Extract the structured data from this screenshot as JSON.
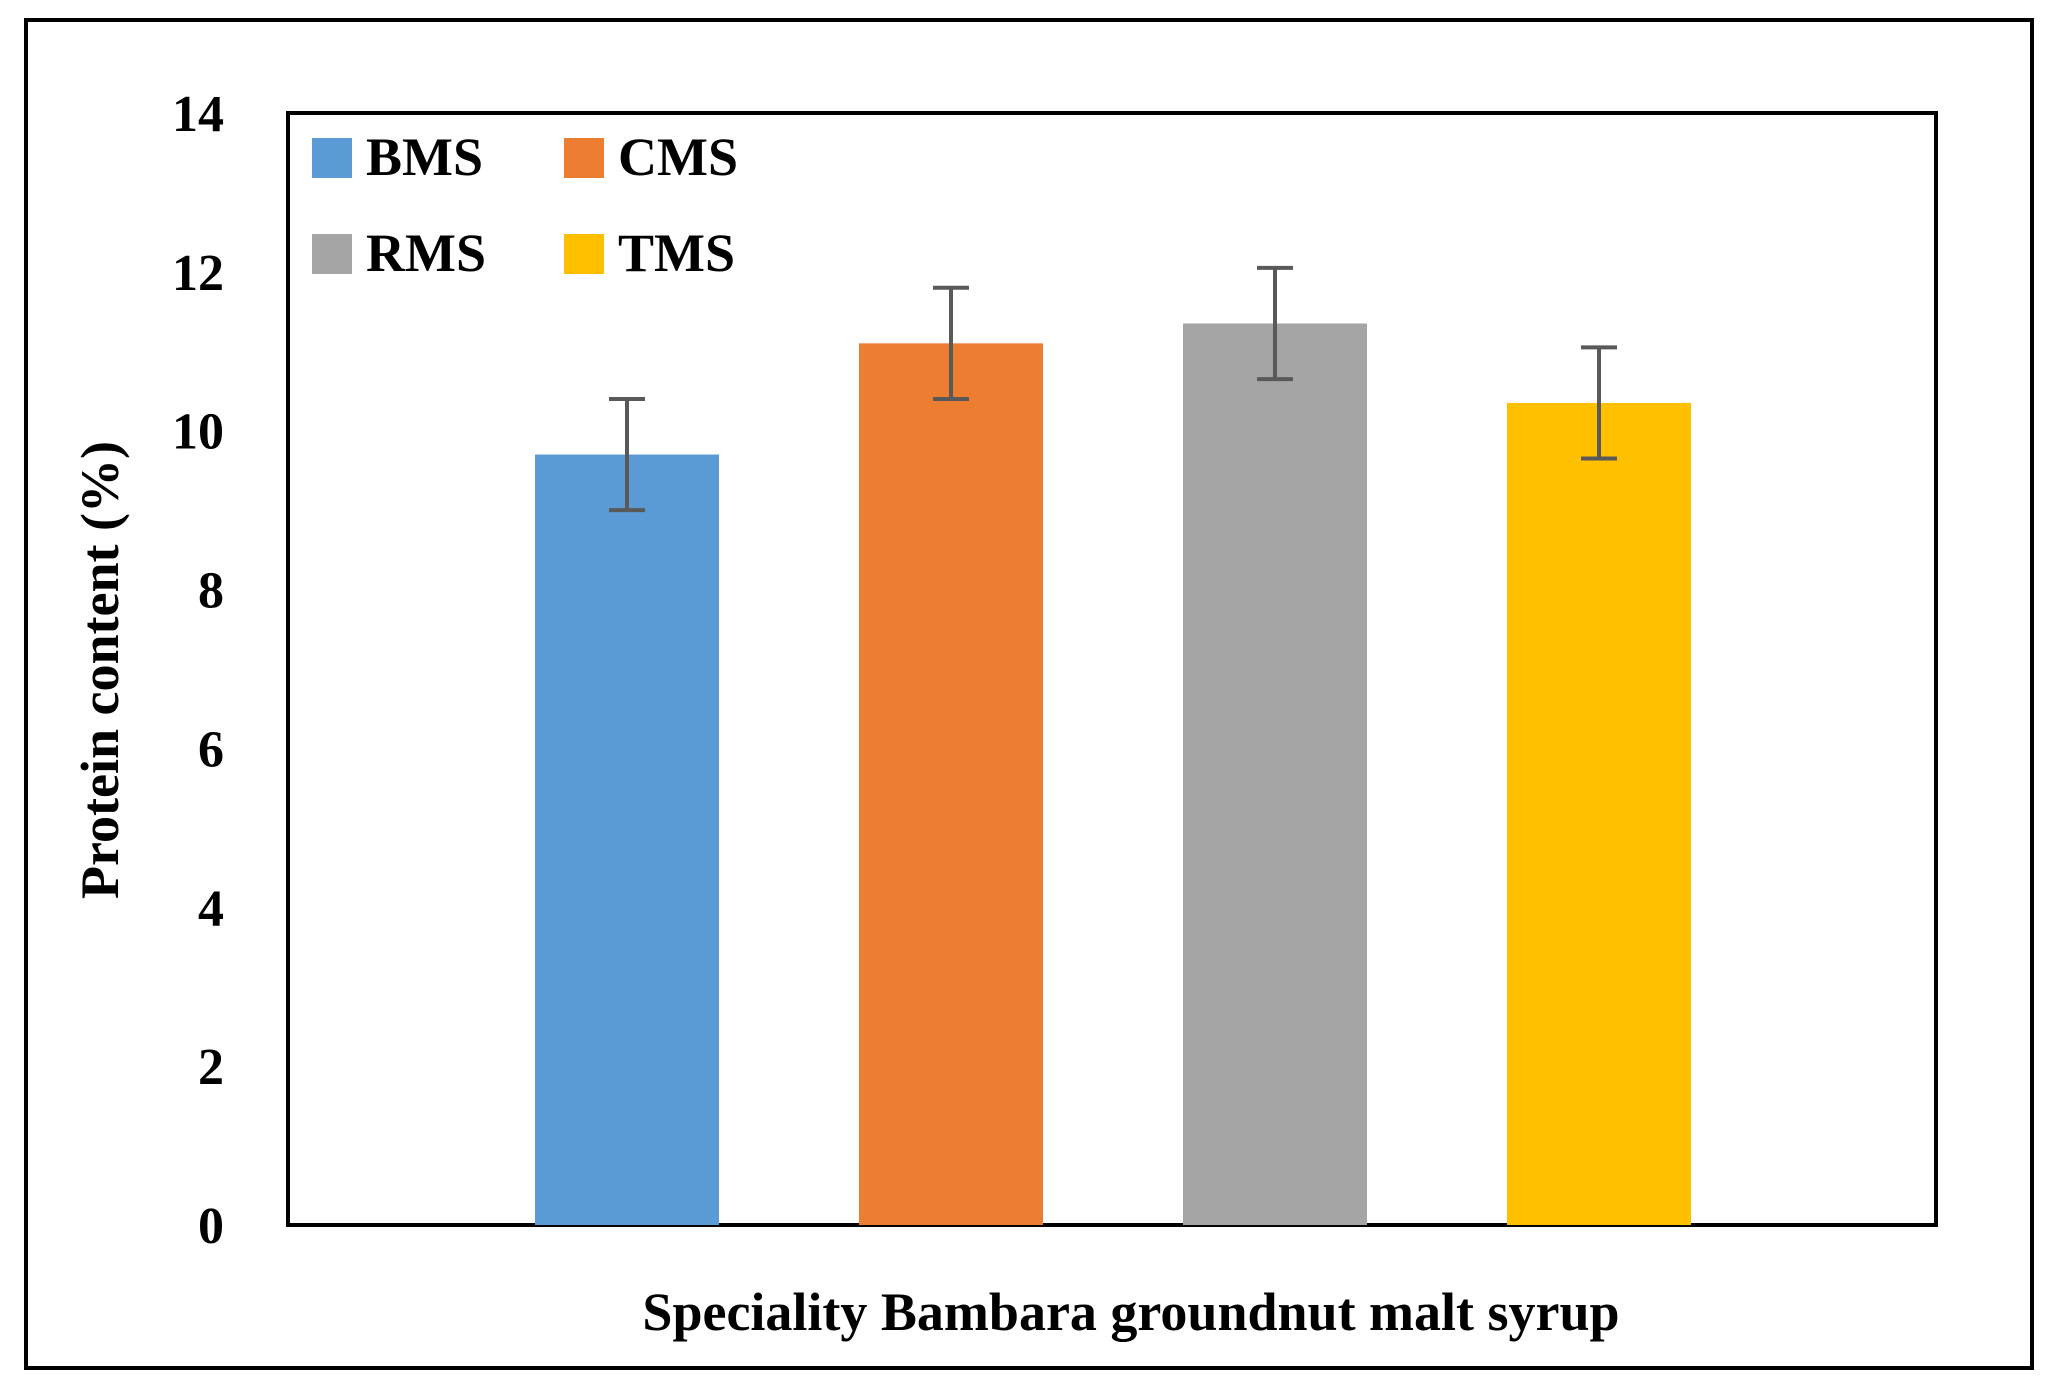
{
  "chart_data": {
    "type": "bar",
    "title": "",
    "xlabel": "Speciality Bambara groundnut malt syrup",
    "ylabel": "Protein content  (%)",
    "ylim": [
      0,
      14
    ],
    "yticks": [
      0,
      2,
      4,
      6,
      8,
      10,
      12,
      14
    ],
    "ytick_labels": [
      "0",
      "2",
      "4",
      "6",
      "8",
      "10",
      "12",
      "14"
    ],
    "grid": false,
    "legend_position": "top-left",
    "series": [
      {
        "name": "BMS",
        "value": 9.7,
        "error": 0.7,
        "color": "#5b9bd5"
      },
      {
        "name": "CMS",
        "value": 11.1,
        "error": 0.7,
        "color": "#ed7d31"
      },
      {
        "name": "RMS",
        "value": 11.35,
        "error": 0.7,
        "color": "#a5a5a5"
      },
      {
        "name": "TMS",
        "value": 10.35,
        "error": 0.7,
        "color": "#ffc000"
      }
    ],
    "error_bar_color": "#595959"
  }
}
